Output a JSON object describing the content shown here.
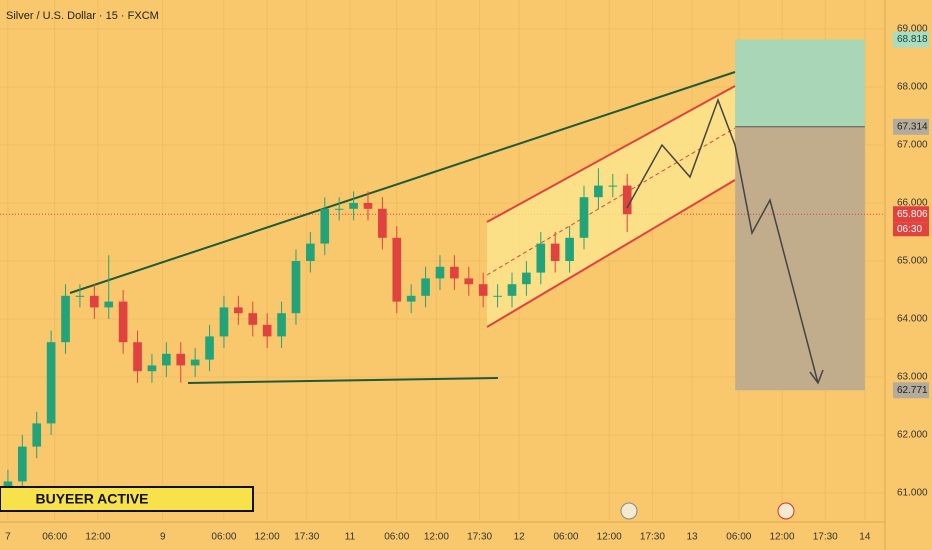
{
  "chart_data": {
    "type": "candlestick",
    "title": "Silver / U.S. Dollar · 15 · FXCM",
    "annotation": "BUYEER ACTIVE",
    "countdown": "06:30",
    "current_price": 65.806,
    "colors": {
      "up": "#22a37a",
      "down": "#e0423f"
    },
    "x": [
      0,
      2,
      4,
      6,
      8,
      10,
      12,
      14,
      16,
      18,
      20,
      22,
      24,
      26,
      28,
      30,
      32,
      34,
      36,
      38,
      40,
      42,
      44,
      46,
      48,
      50,
      52,
      54,
      56,
      58,
      60,
      62,
      64,
      66,
      68,
      70,
      72,
      74,
      76,
      78,
      80,
      82,
      84,
      86
    ],
    "open": [
      61.0,
      61.2,
      61.8,
      62.2,
      63.6,
      64.4,
      64.4,
      64.2,
      64.3,
      63.6,
      63.1,
      63.2,
      63.4,
      63.2,
      63.3,
      63.7,
      64.2,
      64.1,
      63.9,
      63.7,
      64.1,
      65.0,
      65.3,
      65.9,
      65.9,
      66.0,
      65.9,
      65.4,
      64.3,
      64.4,
      64.7,
      64.9,
      64.7,
      64.6,
      64.4,
      64.4,
      64.6,
      64.8,
      65.3,
      65.0,
      65.4,
      66.1,
      66.3,
      66.3
    ],
    "high": [
      61.4,
      62.0,
      62.4,
      63.8,
      64.6,
      64.6,
      64.6,
      65.1,
      64.5,
      63.8,
      63.4,
      63.6,
      63.6,
      63.5,
      63.9,
      64.4,
      64.4,
      64.3,
      64.1,
      64.3,
      65.2,
      65.5,
      66.1,
      66.1,
      66.2,
      66.2,
      66.1,
      65.6,
      64.6,
      64.9,
      65.1,
      65.1,
      64.9,
      64.8,
      64.6,
      64.8,
      65.0,
      65.5,
      65.5,
      65.6,
      66.3,
      66.6,
      66.5,
      66.5
    ],
    "low": [
      60.8,
      61.0,
      61.6,
      62.0,
      63.4,
      64.2,
      64.0,
      64.0,
      63.4,
      62.9,
      62.9,
      63.0,
      62.9,
      63.0,
      63.1,
      63.5,
      63.9,
      63.7,
      63.5,
      63.5,
      63.9,
      64.8,
      65.1,
      65.7,
      65.7,
      65.7,
      65.2,
      64.1,
      64.1,
      64.2,
      64.5,
      64.5,
      64.4,
      64.2,
      64.2,
      64.2,
      64.4,
      64.6,
      64.8,
      64.8,
      65.2,
      65.9,
      66.1,
      65.5
    ],
    "close": [
      61.2,
      61.8,
      62.2,
      63.6,
      64.4,
      64.4,
      64.2,
      64.3,
      63.6,
      63.1,
      63.2,
      63.4,
      63.2,
      63.3,
      63.7,
      64.2,
      64.1,
      63.9,
      63.7,
      64.1,
      65.0,
      65.3,
      65.9,
      65.9,
      66.0,
      65.9,
      65.4,
      64.3,
      64.4,
      64.7,
      64.9,
      64.7,
      64.6,
      64.4,
      64.4,
      64.6,
      64.8,
      65.3,
      65.0,
      65.4,
      66.1,
      66.3,
      66.3,
      65.806
    ],
    "position": {
      "stop": 68.818,
      "entry": 67.314,
      "target": 62.771,
      "x": [
        101,
        119
      ]
    },
    "xlim": [
      -1.1,
      121.8
    ],
    "ylim": [
      60.5,
      69.5
    ],
    "xticks": [
      {
        "value": 0,
        "label": "7"
      },
      {
        "value": 6.5,
        "label": "06:00"
      },
      {
        "value": 12.5,
        "label": "12:00"
      },
      {
        "value": 21.5,
        "label": "9"
      },
      {
        "value": 30,
        "label": "06:00"
      },
      {
        "value": 36,
        "label": "12:00"
      },
      {
        "value": 41.5,
        "label": "17:30"
      },
      {
        "value": 47.5,
        "label": "11"
      },
      {
        "value": 54,
        "label": "06:00"
      },
      {
        "value": 59.5,
        "label": "12:00"
      },
      {
        "value": 65.5,
        "label": "17:30"
      },
      {
        "value": 71,
        "label": "12"
      },
      {
        "value": 77.5,
        "label": "06:00"
      },
      {
        "value": 83.5,
        "label": "12:00"
      },
      {
        "value": 89.5,
        "label": "17:30"
      },
      {
        "value": 95,
        "label": "13"
      },
      {
        "value": 101.5,
        "label": "06:00"
      },
      {
        "value": 107.5,
        "label": "12:00"
      },
      {
        "value": 113.5,
        "label": "17:30"
      },
      {
        "value": 119,
        "label": "14"
      }
    ],
    "yticks": [
      {
        "value": 61,
        "label": "61.000"
      },
      {
        "value": 62,
        "label": "62.000"
      },
      {
        "value": 63,
        "label": "63.000"
      },
      {
        "value": 64,
        "label": "64.000"
      },
      {
        "value": 65,
        "label": "65.000"
      },
      {
        "value": 66,
        "label": "66.000"
      },
      {
        "value": 67,
        "label": "67.000"
      },
      {
        "value": 68,
        "label": "68.000"
      },
      {
        "value": 69,
        "label": "69.000"
      }
    ]
  }
}
